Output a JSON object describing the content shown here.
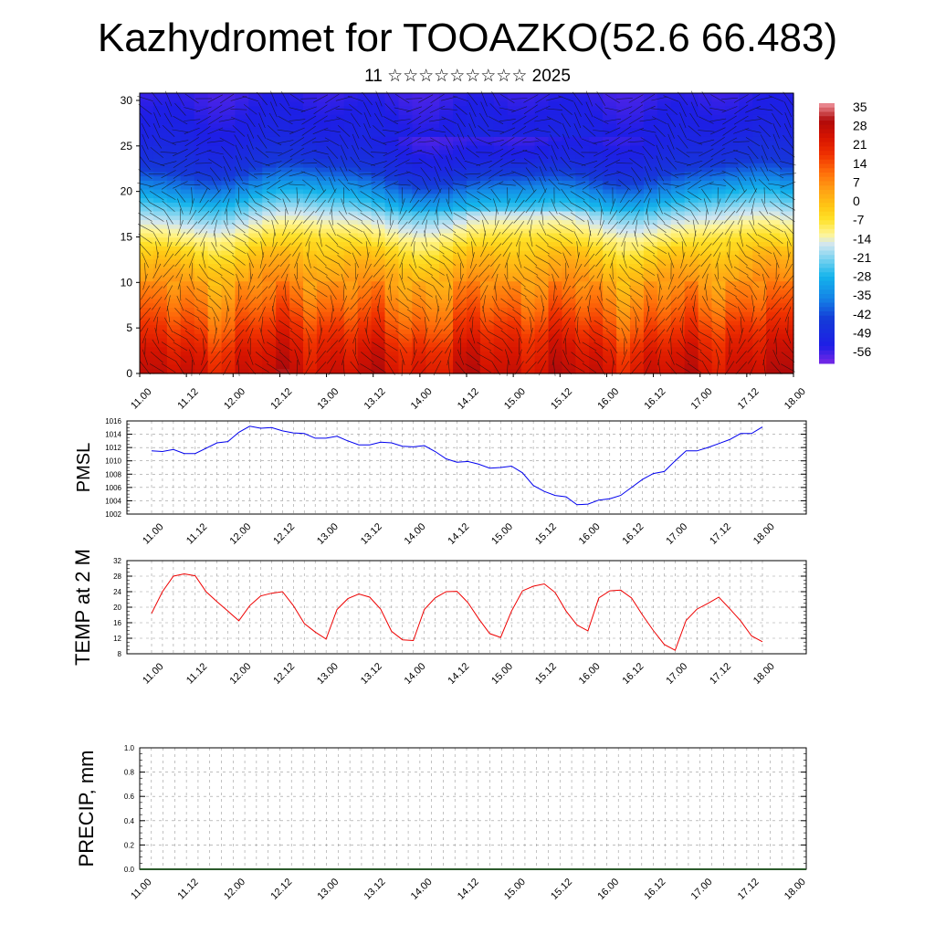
{
  "title": "Kazhydromet for TOOAZKO(52.6 66.483)",
  "subtitle": "11 ☆☆☆☆☆☆☆☆☆ 2025",
  "chart_data": [
    {
      "type": "heatmap",
      "name": "vertical temperature and wind cross-section",
      "xticks": [
        "11.00",
        "11.12",
        "12.00",
        "12.12",
        "13.00",
        "13.12",
        "14.00",
        "14.12",
        "15.00",
        "15.12",
        "16.00",
        "16.12",
        "17.00",
        "17.12",
        "18.00"
      ],
      "yticks": [
        0,
        5,
        10,
        15,
        20,
        25,
        30
      ],
      "ylim": [
        0,
        30.8
      ],
      "colorbar_labels": [
        "35",
        "28",
        "21",
        "14",
        "7",
        "0",
        "-7",
        "-14",
        "-21",
        "-28",
        "-35",
        "-42",
        "-49",
        "-56"
      ],
      "colorbar_range": [
        -63,
        42
      ],
      "level_profile": [
        {
          "level": 0,
          "value": 30
        },
        {
          "level": 3,
          "value": 25
        },
        {
          "level": 6,
          "value": 17
        },
        {
          "level": 9,
          "value": 10
        },
        {
          "level": 12,
          "value": 3
        },
        {
          "level": 14,
          "value": -4
        },
        {
          "level": 15.5,
          "value": -10
        },
        {
          "level": 17,
          "value": -16
        },
        {
          "level": 19,
          "value": -26
        },
        {
          "level": 21,
          "value": -38
        },
        {
          "level": 23,
          "value": -48
        },
        {
          "level": 26,
          "value": -54
        },
        {
          "level": 30.8,
          "value": -58
        }
      ],
      "overlay": "wind barbs"
    },
    {
      "type": "line",
      "ylabel": "PMSL",
      "ylim": [
        1002,
        1016
      ],
      "yticks": [
        "1002",
        "1004",
        "1006",
        "1008",
        "1010",
        "1012",
        "1014",
        "1016"
      ],
      "xticks": [
        "11.00",
        "11.12",
        "12.00",
        "12.12",
        "13.00",
        "13.12",
        "14.00",
        "14.12",
        "15.00",
        "15.12",
        "16.00",
        "16.12",
        "17.00",
        "17.12",
        "18.00"
      ],
      "x_step_hours": 3,
      "series": [
        {
          "color": "#0000ee",
          "values": [
            1011.5,
            1011.4,
            1011.7,
            1011.1,
            1011.1,
            1011.9,
            1012.7,
            1012.9,
            1014.3,
            1015.2,
            1014.9,
            1015.0,
            1014.5,
            1014.2,
            1014.1,
            1013.4,
            1013.4,
            1013.7,
            1013.0,
            1012.4,
            1012.4,
            1012.8,
            1012.7,
            1012.2,
            1012.1,
            1012.3,
            1011.4,
            1010.3,
            1009.8,
            1009.9,
            1009.5,
            1008.9,
            1009.0,
            1009.2,
            1008.2,
            1006.3,
            1005.4,
            1004.8,
            1004.6,
            1003.4,
            1003.5,
            1004.1,
            1004.3,
            1004.8,
            1006.0,
            1007.2,
            1008.1,
            1008.4,
            1010.0,
            1011.5,
            1011.5,
            1012.0,
            1012.6,
            1013.2,
            1014.1,
            1014.1,
            1015.1
          ]
        }
      ]
    },
    {
      "type": "line",
      "ylabel": "TEMP at 2 M",
      "ylim": [
        8,
        32
      ],
      "yticks": [
        "8",
        "12",
        "16",
        "20",
        "24",
        "28",
        "32"
      ],
      "xticks": [
        "11.00",
        "11.12",
        "12.00",
        "12.12",
        "13.00",
        "13.12",
        "14.00",
        "14.12",
        "15.00",
        "15.12",
        "16.00",
        "16.12",
        "17.00",
        "17.12",
        "18.00"
      ],
      "x_step_hours": 3,
      "series": [
        {
          "color": "#ee0000",
          "values": [
            18.4,
            24.0,
            28.0,
            28.6,
            28.1,
            24.0,
            21.4,
            19.0,
            16.5,
            20.4,
            22.9,
            23.6,
            24.0,
            20.4,
            15.8,
            13.6,
            11.8,
            19.4,
            22.2,
            23.4,
            22.6,
            19.5,
            13.8,
            11.6,
            11.4,
            19.4,
            22.4,
            24.0,
            24.1,
            21.2,
            17.0,
            13.2,
            12.2,
            19.0,
            24.2,
            25.4,
            26.0,
            23.8,
            19.0,
            15.4,
            13.9,
            22.4,
            24.2,
            24.4,
            22.4,
            18.0,
            14.0,
            10.4,
            8.9,
            16.6,
            19.5,
            21.0,
            22.6,
            19.6,
            16.5,
            12.6,
            11.1
          ]
        }
      ]
    },
    {
      "type": "bar",
      "ylabel": "PRECIP, mm",
      "ylim": [
        0,
        1
      ],
      "yticks": [
        "0.0",
        "0.2",
        "0.4",
        "0.6",
        "0.8",
        "1.0"
      ],
      "xticks": [
        "11.00",
        "11.12",
        "12.00",
        "12.12",
        "13.00",
        "13.12",
        "14.00",
        "14.12",
        "15.00",
        "15.12",
        "16.00",
        "16.12",
        "17.00",
        "17.12",
        "18.00"
      ],
      "values": []
    }
  ]
}
